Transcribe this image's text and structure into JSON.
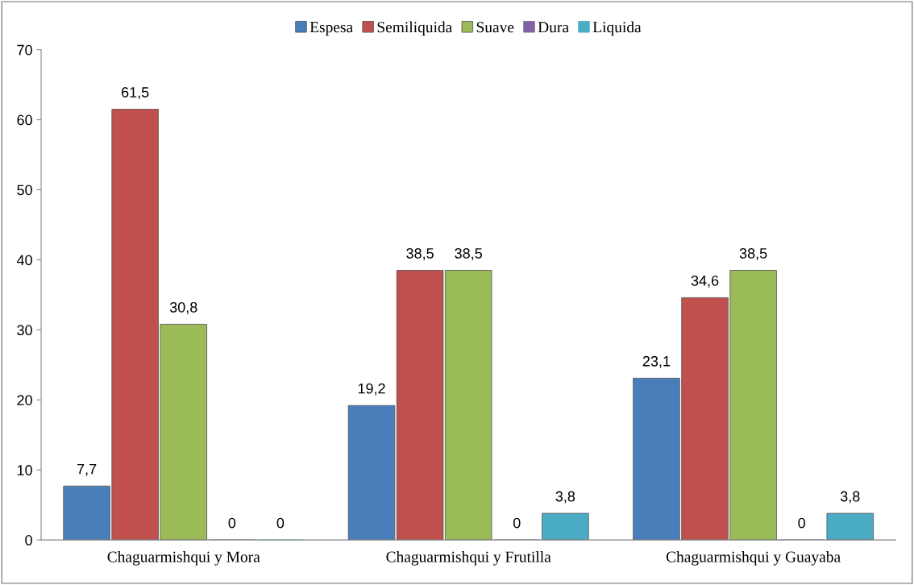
{
  "chart_data": {
    "type": "bar",
    "categories": [
      "Chaguarmishqui y Mora",
      "Chaguarmishqui y Frutilla",
      "Chaguarmishqui y Guayaba"
    ],
    "series": [
      {
        "name": "Espesa",
        "color": "#4a7ebb",
        "values": [
          7.7,
          19.2,
          23.1
        ],
        "value_labels": [
          "7,7",
          "19,2",
          "23,1"
        ]
      },
      {
        "name": "Semiliquida",
        "color": "#c0504d",
        "values": [
          61.5,
          38.5,
          34.6
        ],
        "value_labels": [
          "61,5",
          "38,5",
          "34,6"
        ]
      },
      {
        "name": "Suave",
        "color": "#9bbb59",
        "values": [
          30.8,
          38.5,
          38.5
        ],
        "value_labels": [
          "30,8",
          "38,5",
          "38,5"
        ]
      },
      {
        "name": "Dura",
        "color": "#8064a2",
        "values": [
          0,
          0,
          0
        ],
        "value_labels": [
          "0",
          "0",
          "0"
        ]
      },
      {
        "name": "Liquida",
        "color": "#4bacc6",
        "values": [
          0,
          3.8,
          3.8
        ],
        "value_labels": [
          "0",
          "3,8",
          "3,8"
        ]
      }
    ],
    "ylim": [
      0,
      70
    ],
    "yticks": [
      0,
      10,
      20,
      30,
      40,
      50,
      60,
      70
    ],
    "grid": false,
    "legend": "top"
  }
}
